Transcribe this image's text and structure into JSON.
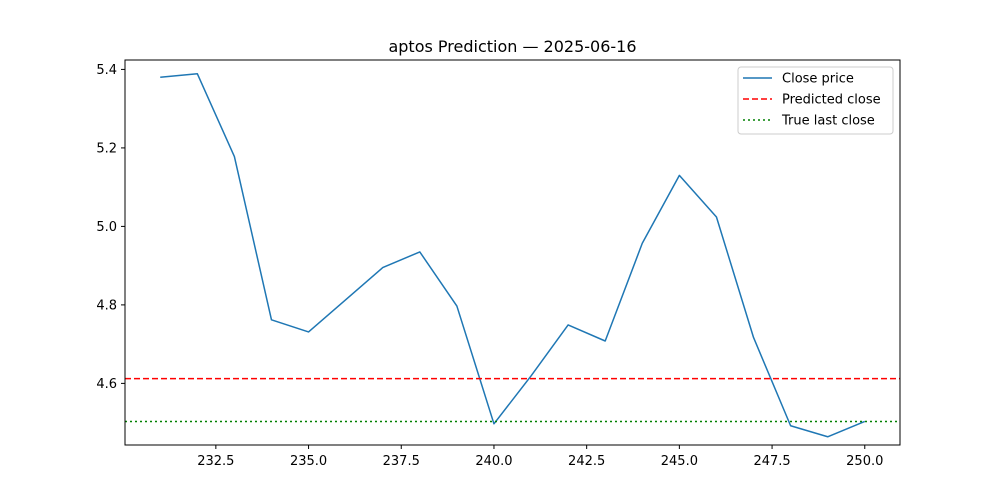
{
  "chart_data": {
    "type": "line",
    "title": "aptos Prediction — 2025-06-16",
    "xlabel": "",
    "ylabel": "",
    "xlim": [
      230.05,
      250.95
    ],
    "ylim": [
      4.443,
      5.424
    ],
    "xticks": [
      232.5,
      235.0,
      237.5,
      240.0,
      242.5,
      245.0,
      247.5,
      250.0
    ],
    "xtick_labels": [
      "232.5",
      "235.0",
      "237.5",
      "240.0",
      "242.5",
      "245.0",
      "247.5",
      "250.0"
    ],
    "yticks": [
      4.6,
      4.8,
      5.0,
      5.2,
      5.4
    ],
    "ytick_labels": [
      "4.6",
      "4.8",
      "5.0",
      "5.2",
      "5.4"
    ],
    "grid": false,
    "legend_position": "top-right",
    "series": [
      {
        "name": "Close price",
        "style": "solid",
        "color": "#1f77b4",
        "x": [
          231,
          232,
          233,
          234,
          235,
          236,
          237,
          238,
          239,
          240,
          241,
          242,
          243,
          244,
          245,
          246,
          247,
          248,
          249,
          250
        ],
        "y": [
          5.38,
          5.389,
          5.178,
          4.762,
          4.731,
          4.813,
          4.895,
          4.935,
          4.797,
          4.497,
          4.619,
          4.749,
          4.708,
          4.957,
          5.13,
          5.024,
          4.717,
          4.492,
          4.464,
          4.503
        ]
      },
      {
        "name": "Predicted close",
        "style": "dashed",
        "color": "#ff0000",
        "hline": 4.612
      },
      {
        "name": "True last close",
        "style": "dotted",
        "color": "#008000",
        "hline": 4.503
      }
    ]
  }
}
